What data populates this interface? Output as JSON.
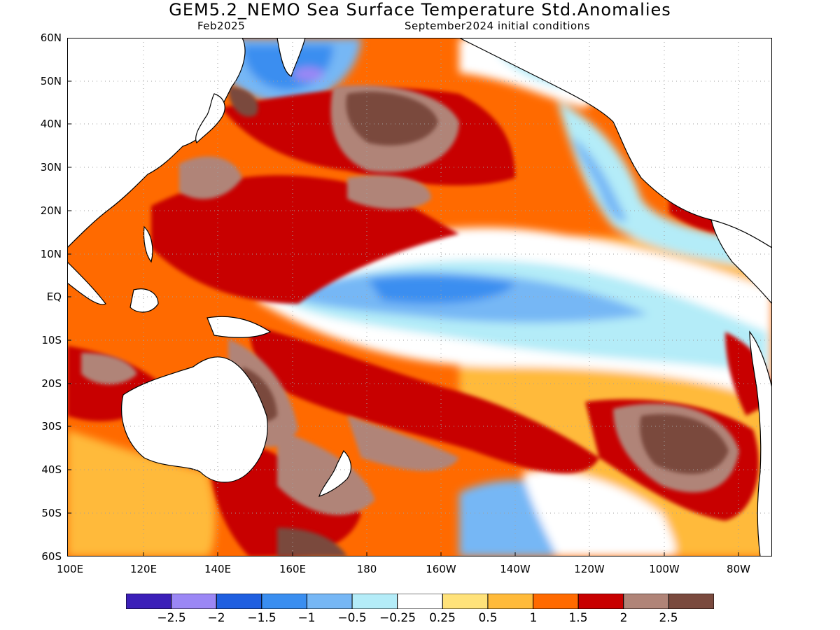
{
  "title": "GEM5.2_NEMO Sea Surface Temperature Std.Anomalies",
  "subtitle_left": "Feb2025",
  "subtitle_right": "September2024 initial conditions",
  "lat_labels": [
    "60N",
    "50N",
    "40N",
    "30N",
    "20N",
    "10N",
    "EQ",
    "10S",
    "20S",
    "30S",
    "40S",
    "50S",
    "60S"
  ],
  "lon_labels": [
    "100E",
    "120E",
    "140E",
    "160E",
    "180",
    "160W",
    "140W",
    "120W",
    "100W",
    "80W"
  ],
  "colorbar": {
    "colors": [
      "#3b1fb8",
      "#9b87f5",
      "#1f5fe0",
      "#3a8ef0",
      "#76b7f5",
      "#b4ecf8",
      "#ffffff",
      "#ffe27a",
      "#ffba3a",
      "#ff6a00",
      "#c80000",
      "#b08478",
      "#7a4a3e"
    ],
    "labels": [
      "−2.5",
      "−2",
      "−1.5",
      "−1",
      "−0.5",
      "−0.25",
      "0.25",
      "0.5",
      "1",
      "1.5",
      "2",
      "2.5"
    ]
  },
  "colors": {
    "land": "#ffffff",
    "coast": "#000000",
    "grid": "#a0a0a0"
  }
}
